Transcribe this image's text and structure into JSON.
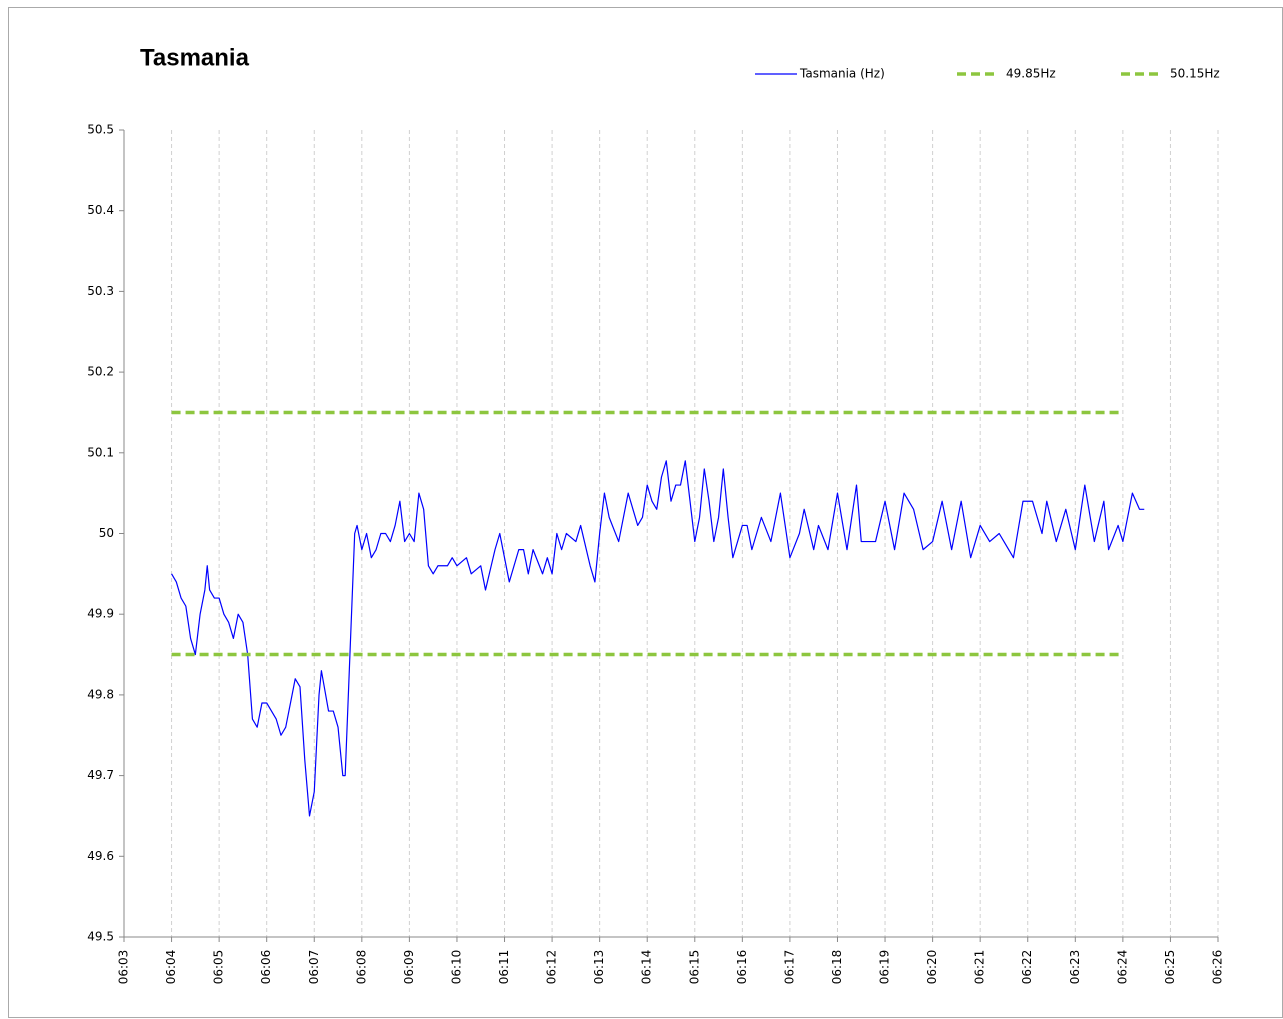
{
  "chart_data": {
    "type": "line",
    "title": "Tasmania",
    "xlim": [
      363,
      386
    ],
    "xticks": [
      {
        "value": 363,
        "label": "06:03"
      },
      {
        "value": 364,
        "label": "06:04"
      },
      {
        "value": 365,
        "label": "06:05"
      },
      {
        "value": 366,
        "label": "06:06"
      },
      {
        "value": 367,
        "label": "06:07"
      },
      {
        "value": 368,
        "label": "06:08"
      },
      {
        "value": 369,
        "label": "06:09"
      },
      {
        "value": 370,
        "label": "06:10"
      },
      {
        "value": 371,
        "label": "06:11"
      },
      {
        "value": 372,
        "label": "06:12"
      },
      {
        "value": 373,
        "label": "06:13"
      },
      {
        "value": 374,
        "label": "06:14"
      },
      {
        "value": 375,
        "label": "06:15"
      },
      {
        "value": 376,
        "label": "06:16"
      },
      {
        "value": 377,
        "label": "06:17"
      },
      {
        "value": 378,
        "label": "06:18"
      },
      {
        "value": 379,
        "label": "06:19"
      },
      {
        "value": 380,
        "label": "06:20"
      },
      {
        "value": 381,
        "label": "06:21"
      },
      {
        "value": 382,
        "label": "06:22"
      },
      {
        "value": 383,
        "label": "06:23"
      },
      {
        "value": 384,
        "label": "06:24"
      },
      {
        "value": 385,
        "label": "06:25"
      },
      {
        "value": 386,
        "label": "06:26"
      }
    ],
    "ylim": [
      49.5,
      50.5
    ],
    "yticks": [
      49.5,
      49.6,
      49.7,
      49.8,
      49.9,
      50,
      50.1,
      50.2,
      50.3,
      50.4,
      50.5
    ],
    "grid": "x",
    "legend": "top-right",
    "series": [
      {
        "name": "Tasmania (Hz)",
        "color": "#0000ff",
        "dashed": false,
        "x": [
          364.0,
          364.1,
          364.2,
          364.3,
          364.4,
          364.5,
          364.6,
          364.7,
          364.75,
          364.8,
          364.9,
          365.0,
          365.1,
          365.2,
          365.3,
          365.4,
          365.5,
          365.6,
          365.7,
          365.8,
          365.9,
          366.0,
          366.2,
          366.3,
          366.4,
          366.5,
          366.6,
          366.7,
          366.8,
          366.9,
          367.0,
          367.1,
          367.15,
          367.3,
          367.4,
          367.5,
          367.6,
          367.65,
          367.75,
          367.85,
          367.9,
          368.0,
          368.1,
          368.2,
          368.3,
          368.4,
          368.5,
          368.6,
          368.7,
          368.8,
          368.9,
          369.0,
          369.1,
          369.2,
          369.3,
          369.4,
          369.5,
          369.6,
          369.8,
          369.9,
          370.0,
          370.2,
          370.3,
          370.5,
          370.6,
          370.8,
          370.9,
          371.0,
          371.1,
          371.3,
          371.4,
          371.5,
          371.6,
          371.8,
          371.9,
          372.0,
          372.1,
          372.2,
          372.3,
          372.5,
          372.6,
          372.8,
          372.9,
          373.0,
          373.1,
          373.2,
          373.4,
          373.6,
          373.7,
          373.8,
          373.9,
          374.0,
          374.1,
          374.2,
          374.3,
          374.4,
          374.5,
          374.6,
          374.7,
          374.8,
          374.9,
          375.0,
          375.1,
          375.2,
          375.3,
          375.4,
          375.5,
          375.6,
          375.7,
          375.8,
          376.0,
          376.1,
          376.2,
          376.4,
          376.6,
          376.8,
          377.0,
          377.2,
          377.3,
          377.5,
          377.6,
          377.8,
          378.0,
          378.2,
          378.4,
          378.5,
          378.6,
          378.8,
          379.0,
          379.2,
          379.4,
          379.6,
          379.8,
          380.0,
          380.2,
          380.4,
          380.6,
          380.8,
          381.0,
          381.2,
          381.4,
          381.5,
          381.7,
          381.9,
          382.1,
          382.3,
          382.4,
          382.6,
          382.8,
          383.0,
          383.2,
          383.4,
          383.6,
          383.7,
          383.9,
          384.0,
          384.2,
          384.35,
          384.45
        ],
        "values": [
          49.95,
          49.94,
          49.92,
          49.91,
          49.87,
          49.85,
          49.9,
          49.93,
          49.96,
          49.93,
          49.92,
          49.92,
          49.9,
          49.89,
          49.87,
          49.9,
          49.89,
          49.85,
          49.77,
          49.76,
          49.79,
          49.79,
          49.77,
          49.75,
          49.76,
          49.79,
          49.82,
          49.81,
          49.72,
          49.65,
          49.68,
          49.8,
          49.83,
          49.78,
          49.78,
          49.76,
          49.7,
          49.7,
          49.85,
          50.0,
          50.01,
          49.98,
          50.0,
          49.97,
          49.98,
          50.0,
          50.0,
          49.99,
          50.01,
          50.04,
          49.99,
          50.0,
          49.99,
          50.05,
          50.03,
          49.96,
          49.95,
          49.96,
          49.96,
          49.97,
          49.96,
          49.97,
          49.95,
          49.96,
          49.93,
          49.98,
          50.0,
          49.97,
          49.94,
          49.98,
          49.98,
          49.95,
          49.98,
          49.95,
          49.97,
          49.95,
          50.0,
          49.98,
          50.0,
          49.99,
          50.01,
          49.96,
          49.94,
          50.0,
          50.05,
          50.02,
          49.99,
          50.05,
          50.03,
          50.01,
          50.02,
          50.06,
          50.04,
          50.03,
          50.07,
          50.09,
          50.04,
          50.06,
          50.06,
          50.09,
          50.04,
          49.99,
          50.02,
          50.08,
          50.04,
          49.99,
          50.02,
          50.08,
          50.02,
          49.97,
          50.01,
          50.01,
          49.98,
          50.02,
          49.99,
          50.05,
          49.97,
          50.0,
          50.03,
          49.98,
          50.01,
          49.98,
          50.05,
          49.98,
          50.06,
          49.99,
          49.99,
          49.99,
          50.04,
          49.98,
          50.05,
          50.03,
          49.98,
          49.99,
          50.04,
          49.98,
          50.04,
          49.97,
          50.01,
          49.99,
          50.0,
          49.99,
          49.97,
          50.04,
          50.04,
          50.0,
          50.04,
          49.99,
          50.03,
          49.98,
          50.06,
          49.99,
          50.04,
          49.98,
          50.01,
          49.99,
          50.05,
          50.03,
          50.03
        ]
      },
      {
        "name": "49.85Hz",
        "color": "#8dc63f",
        "dashed": true,
        "x": [
          364,
          384
        ],
        "values": [
          49.85,
          49.85
        ]
      },
      {
        "name": "50.15Hz",
        "color": "#8dc63f",
        "dashed": true,
        "x": [
          364,
          384
        ],
        "values": [
          50.15,
          50.15
        ]
      }
    ]
  }
}
